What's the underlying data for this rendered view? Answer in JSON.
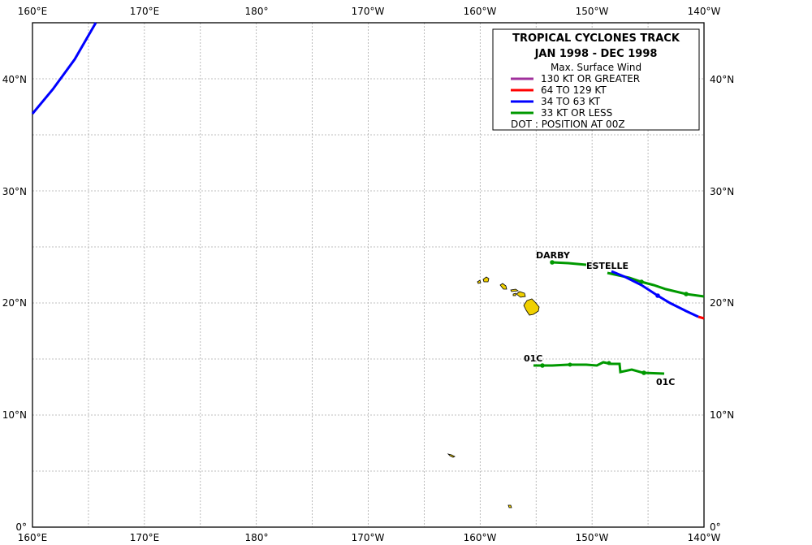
{
  "map": {
    "lon_labels": [
      "160°E",
      "170°E",
      "180°",
      "170°W",
      "160°W",
      "150°W",
      "140°W"
    ],
    "lat_labels": [
      "0°",
      "10°N",
      "20°N",
      "30°N",
      "40°N"
    ]
  },
  "legend": {
    "title1": "TROPICAL  CYCLONES TRACK",
    "title2": "JAN 1998  -  DEC 1998",
    "subtitle": "Max. Surface Wind",
    "items": [
      {
        "label": "130 KT OR GREATER",
        "color": "#a0309c"
      },
      {
        "label": "64 TO 129 KT",
        "color": "#ff0000"
      },
      {
        "label": "34 TO 63 KT",
        "color": "#0000ff"
      },
      {
        "label": "33 KT OR LESS",
        "color": "#009900"
      }
    ],
    "dot_note": "DOT : POSITION AT 00Z"
  },
  "storms": [
    {
      "name": "DARBY"
    },
    {
      "name": "ESTELLE"
    },
    {
      "name": "01C"
    },
    {
      "name": "01C"
    }
  ],
  "colors": {
    "land": "#f0d000",
    "grid": "#aaaaaa",
    "frame": "#000000"
  }
}
